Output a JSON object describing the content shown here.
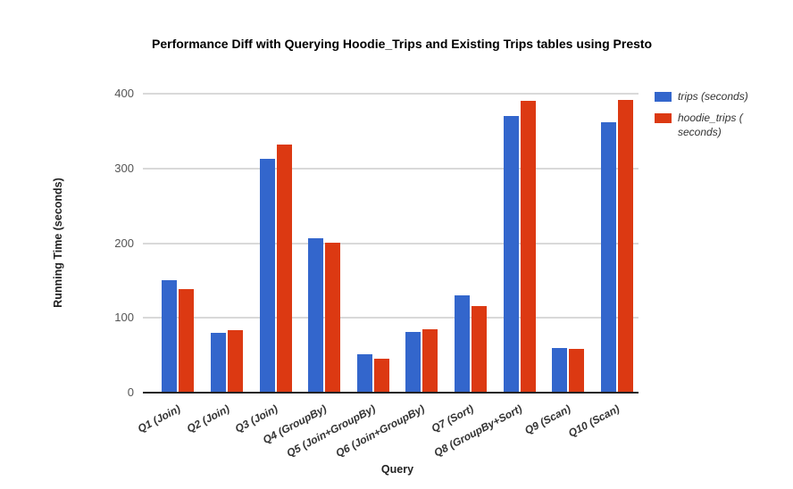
{
  "chart_data": {
    "type": "bar",
    "title": "Performance Diff with Querying Hoodie_Trips and Existing Trips tables using Presto",
    "xlabel": "Query",
    "ylabel": "Running Time (seconds)",
    "categories": [
      "Q1 (Join)",
      "Q2 (Join)",
      "Q3 (Join)",
      "Q4 (GroupBy)",
      "Q5 (Join+GroupBy)",
      "Q6 (Join+GroupBy)",
      "Q7 (Sort)",
      "Q8 (GroupBy+Sort)",
      "Q9 (Scan)",
      "Q10 (Scan)"
    ],
    "series": [
      {
        "name": "trips (seconds)",
        "color": "#3366CC",
        "values": [
          150,
          80,
          313,
          207,
          51,
          81,
          130,
          370,
          60,
          362
        ]
      },
      {
        "name": "hoodie_trips ( seconds)",
        "color": "#DC3912",
        "values": [
          138,
          83,
          332,
          201,
          45,
          85,
          116,
          390,
          59,
          392
        ]
      }
    ],
    "ylim": [
      0,
      400
    ],
    "yticks": [
      0,
      100,
      200,
      300,
      400
    ],
    "grid": true,
    "legend_position": "top-right"
  }
}
